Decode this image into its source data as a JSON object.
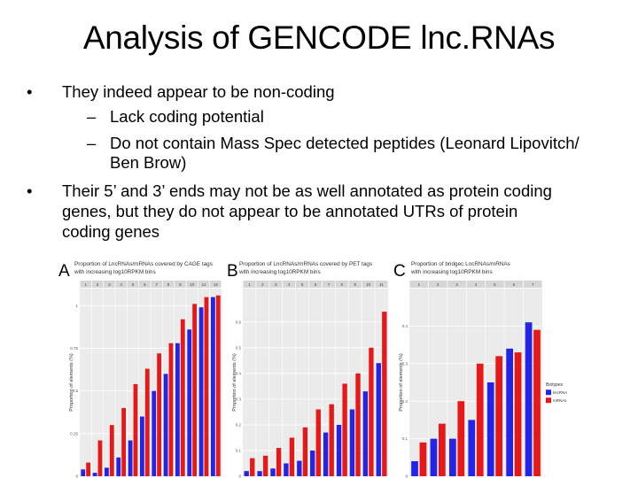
{
  "slide": {
    "title": "Analysis of GENCODE lnc.RNAs",
    "bullets": [
      {
        "level": 1,
        "lines": [
          "They indeed appear to be non-coding"
        ]
      },
      {
        "level": 2,
        "lines": [
          "Lack coding potential"
        ]
      },
      {
        "level": 2,
        "lines": [
          "Do not contain Mass Spec detected peptides (Leonard Lipovitch/",
          "Ben Brow)"
        ]
      },
      {
        "level": 1,
        "lines": [
          "Their 5’ and 3’ ends may not be as well annotated as protein coding",
          "genes, but they do not appear to be annotated UTRs of protein",
          "coding genes"
        ]
      }
    ],
    "bullet_glyph_l1": "•",
    "bullet_glyph_l2": "–"
  },
  "colors": {
    "lncrna": "#2424e6",
    "mrna": "#e81818",
    "panel_bg": "#ebebeb",
    "grid": "#ffffff"
  },
  "chart_data": [
    {
      "type": "bar",
      "panel_label": "A",
      "title": "Proportion of LncRNAs/mRNAs covered by CAGE tags\nwith increasing log10RPKM bins",
      "ylabel": "Proportion of elements (%)",
      "ylim": [
        0,
        1.1
      ],
      "yticks": [
        0,
        0.25,
        0.5,
        0.75,
        1
      ],
      "categories": [
        "1",
        "2",
        "3",
        "4",
        "5",
        "6",
        "7",
        "8",
        "9",
        "10",
        "11",
        "12"
      ],
      "series": [
        {
          "name": "lncRNAs",
          "values": [
            0.04,
            0.02,
            0.05,
            0.11,
            0.21,
            0.35,
            0.5,
            0.6,
            0.78,
            0.86,
            0.99,
            1.05
          ]
        },
        {
          "name": "mRNAs",
          "values": [
            0.08,
            0.21,
            0.3,
            0.4,
            0.54,
            0.63,
            0.72,
            0.78,
            0.92,
            1.01,
            1.05,
            1.06
          ]
        }
      ]
    },
    {
      "type": "bar",
      "panel_label": "B",
      "title": "Proportion of LncRNAs/mRNAs covered by PET tags\nwith increasing log10RPKM bins",
      "ylabel": "Proportion of elements (%)",
      "ylim": [
        0,
        0.73
      ],
      "yticks": [
        0,
        0.1,
        0.2,
        0.3,
        0.4,
        0.5,
        0.6
      ],
      "categories": [
        "1",
        "2",
        "3",
        "4",
        "5",
        "6",
        "7",
        "8",
        "9",
        "10",
        "11"
      ],
      "series": [
        {
          "name": "lncRNAs",
          "values": [
            0.02,
            0.02,
            0.03,
            0.05,
            0.06,
            0.1,
            0.17,
            0.2,
            0.26,
            0.33,
            0.44
          ]
        },
        {
          "name": "mRNAs",
          "values": [
            0.07,
            0.08,
            0.11,
            0.15,
            0.19,
            0.26,
            0.28,
            0.36,
            0.4,
            0.5,
            0.64
          ]
        }
      ]
    },
    {
      "type": "bar",
      "panel_label": "C",
      "title": "Proportion of bridgec LncRNAs/mRNAs\nwith increasing log10RPKM bins",
      "ylabel": "Proportion of elements (%)",
      "ylim": [
        0,
        0.5
      ],
      "yticks": [
        0,
        0.1,
        0.2,
        0.3,
        0.4
      ],
      "categories": [
        "1",
        "2",
        "3",
        "4",
        "5",
        "6",
        "7"
      ],
      "legend_title": "Biotypes",
      "legend_items": [
        "lincRNAs",
        "mRNAs"
      ],
      "series": [
        {
          "name": "lincRNAs",
          "values": [
            0.04,
            0.1,
            0.1,
            0.15,
            0.25,
            0.34,
            0.41
          ]
        },
        {
          "name": "mRNAs",
          "values": [
            0.09,
            0.14,
            0.2,
            0.3,
            0.32,
            0.33,
            0.39
          ]
        }
      ]
    }
  ]
}
